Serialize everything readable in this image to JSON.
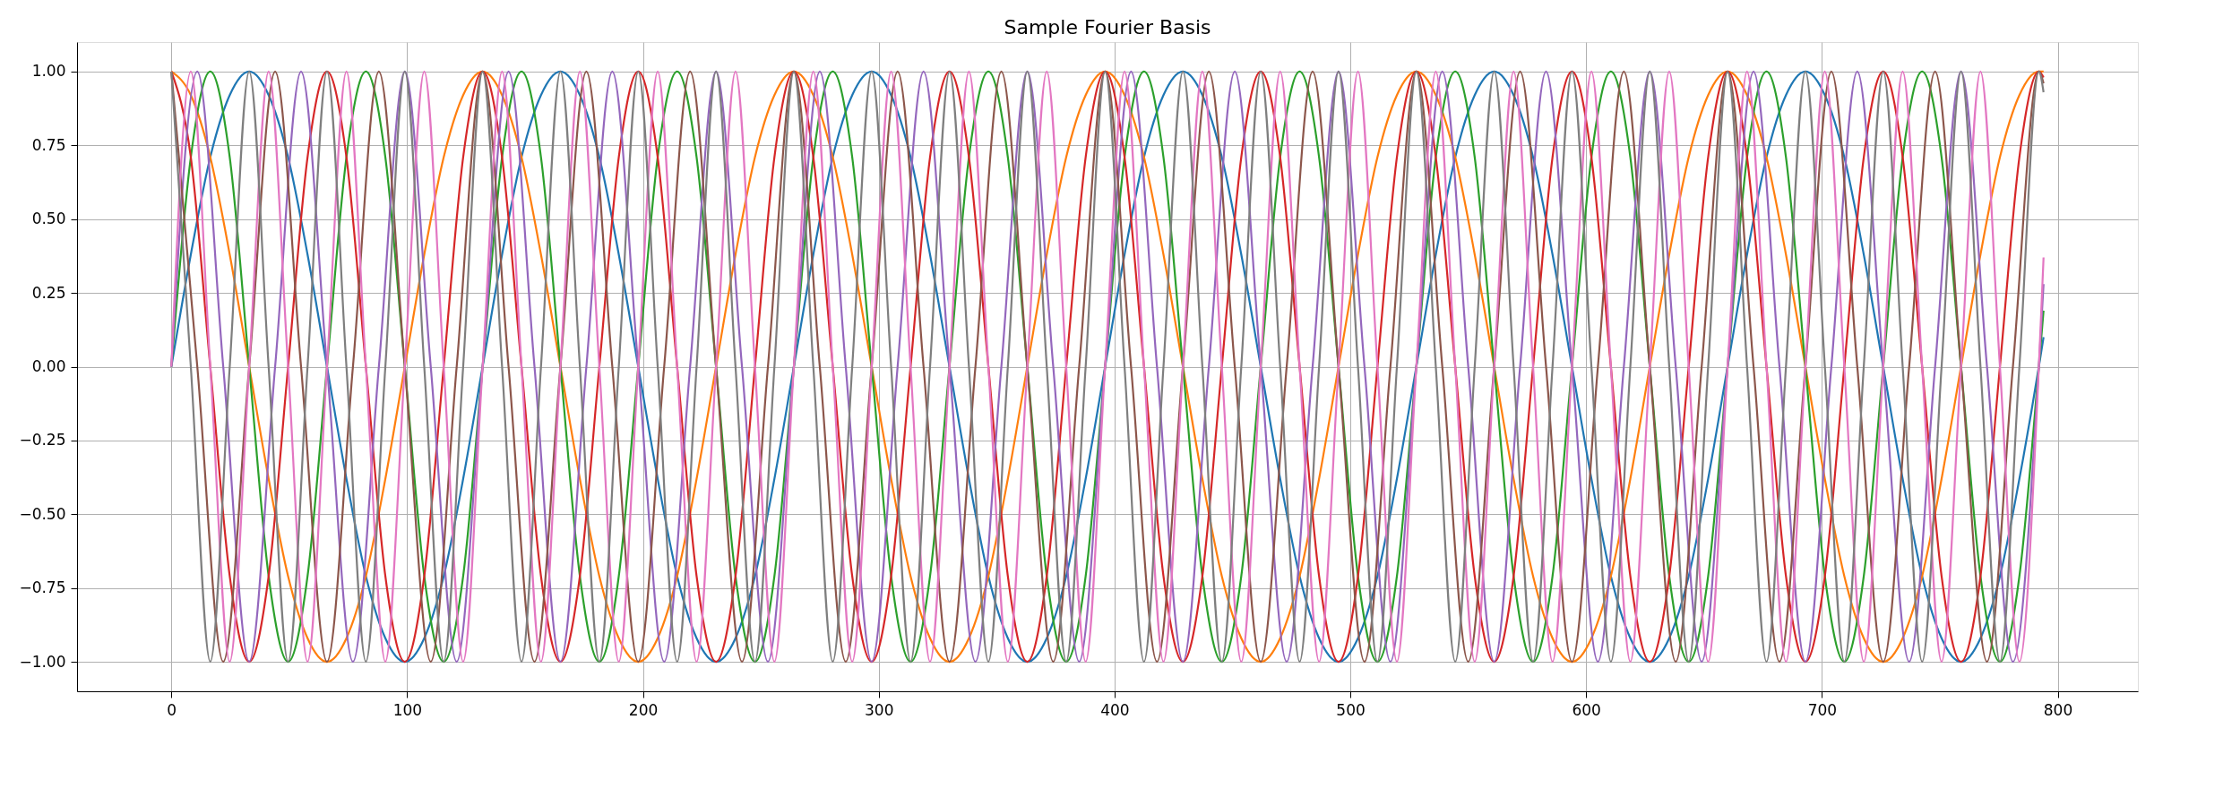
{
  "chart_data": {
    "type": "line",
    "title": "Sample Fourier Basis",
    "x": [
      0,
      8.25,
      16.5,
      24.75,
      33,
      41.25,
      49.5,
      57.75,
      66,
      74.25,
      82.5,
      90.75,
      99,
      107.25,
      115.5,
      123.75,
      132,
      140.25,
      148.5,
      156.75,
      165,
      173.25,
      181.5,
      189.75,
      198,
      206.25,
      214.5,
      222.75,
      231,
      239.25,
      247.5,
      255.75,
      264,
      272.25,
      280.5,
      288.75,
      297,
      305.25,
      313.5,
      321.75,
      330,
      338.25,
      346.5,
      354.75,
      363,
      371.25,
      379.5,
      387.75,
      396,
      404.25,
      412.5,
      420.75,
      429,
      437.25,
      445.5,
      453.75,
      462,
      470.25,
      478.5,
      486.75,
      495,
      503.25,
      511.5,
      519.75,
      528,
      536.25,
      544.5,
      552.75,
      561,
      569.25,
      577.5,
      585.75,
      594,
      602.25,
      610.5,
      618.75,
      627,
      635.25,
      643.5,
      651.75,
      660,
      668.25,
      676.5,
      684.75,
      693,
      701.25,
      709.5,
      717.75,
      726,
      734.25,
      742.5,
      750.75,
      759,
      767.25,
      775.5,
      783.75,
      792,
      794
    ],
    "series": [
      {
        "color": "#1f77b4",
        "values": [
          0,
          0.38,
          0.71,
          0.92,
          1,
          0.92,
          0.71,
          0.38,
          0,
          -0.38,
          -0.71,
          -0.92,
          -1,
          -0.92,
          -0.71,
          -0.38,
          0,
          0.38,
          0.71,
          0.92,
          1,
          0.92,
          0.71,
          0.38,
          0,
          -0.38,
          -0.71,
          -0.92,
          -1,
          -0.92,
          -0.71,
          -0.38,
          0,
          0.38,
          0.71,
          0.92,
          1,
          0.92,
          0.71,
          0.38,
          0,
          -0.38,
          -0.71,
          -0.92,
          -1,
          -0.92,
          -0.71,
          -0.38,
          0,
          0.38,
          0.71,
          0.92,
          1,
          0.92,
          0.71,
          0.38,
          0,
          -0.38,
          -0.71,
          -0.92,
          -1,
          -0.92,
          -0.71,
          -0.38,
          0,
          0.38,
          0.71,
          0.92,
          1,
          0.92,
          0.71,
          0.38,
          0,
          -0.38,
          -0.71,
          -0.92,
          -1,
          -0.92,
          -0.71,
          -0.38,
          0,
          0.38,
          0.71,
          0.92,
          1,
          0.92,
          0.71,
          0.38,
          0,
          -0.38,
          -0.71,
          -0.92,
          -1,
          -0.92,
          -0.71,
          -0.38,
          0,
          0.1
        ]
      },
      {
        "color": "#ff7f0e",
        "values": [
          1,
          0.92,
          0.71,
          0.38,
          0,
          -0.38,
          -0.71,
          -0.92,
          -1,
          -0.92,
          -0.71,
          -0.38,
          0,
          0.38,
          0.71,
          0.92,
          1,
          0.92,
          0.71,
          0.38,
          0,
          -0.38,
          -0.71,
          -0.92,
          -1,
          -0.92,
          -0.71,
          -0.38,
          0,
          0.38,
          0.71,
          0.92,
          1,
          0.92,
          0.71,
          0.38,
          0,
          -0.38,
          -0.71,
          -0.92,
          -1,
          -0.92,
          -0.71,
          -0.38,
          0,
          0.38,
          0.71,
          0.92,
          1,
          0.92,
          0.71,
          0.38,
          0,
          -0.38,
          -0.71,
          -0.92,
          -1,
          -0.92,
          -0.71,
          -0.38,
          0,
          0.38,
          0.71,
          0.92,
          1,
          0.92,
          0.71,
          0.38,
          0,
          -0.38,
          -0.71,
          -0.92,
          -1,
          -0.92,
          -0.71,
          -0.38,
          0,
          0.38,
          0.71,
          0.92,
          1,
          0.92,
          0.71,
          0.38,
          0,
          -0.38,
          -0.71,
          -0.92,
          -1,
          -0.92,
          -0.71,
          -0.38,
          0,
          0.38,
          0.71,
          0.92,
          1,
          1
        ]
      },
      {
        "color": "#2ca02c",
        "values": [
          0,
          0.71,
          1,
          0.71,
          0,
          -0.71,
          -1,
          -0.71,
          0,
          0.71,
          1,
          0.71,
          0,
          -0.71,
          -1,
          -0.71,
          0,
          0.71,
          1,
          0.71,
          0,
          -0.71,
          -1,
          -0.71,
          0,
          0.71,
          1,
          0.71,
          0,
          -0.71,
          -1,
          -0.71,
          0,
          0.71,
          1,
          0.71,
          0,
          -0.71,
          -1,
          -0.71,
          0,
          0.71,
          1,
          0.71,
          0,
          -0.71,
          -1,
          -0.71,
          0,
          0.71,
          1,
          0.71,
          0,
          -0.71,
          -1,
          -0.71,
          0,
          0.71,
          1,
          0.71,
          0,
          -0.71,
          -1,
          -0.71,
          0,
          0.71,
          1,
          0.71,
          0,
          -0.71,
          -1,
          -0.71,
          0,
          0.71,
          1,
          0.71,
          0,
          -0.71,
          -1,
          -0.71,
          0,
          0.71,
          1,
          0.71,
          0,
          -0.71,
          -1,
          -0.71,
          0,
          0.71,
          1,
          0.71,
          0,
          -0.71,
          -1,
          -0.71,
          0,
          0.19
        ]
      },
      {
        "color": "#d62728",
        "values": [
          1,
          0.71,
          0,
          -0.71,
          -1,
          -0.71,
          0,
          0.71,
          1,
          0.71,
          0,
          -0.71,
          -1,
          -0.71,
          0,
          0.71,
          1,
          0.71,
          0,
          -0.71,
          -1,
          -0.71,
          0,
          0.71,
          1,
          0.71,
          0,
          -0.71,
          -1,
          -0.71,
          0,
          0.71,
          1,
          0.71,
          0,
          -0.71,
          -1,
          -0.71,
          0,
          0.71,
          1,
          0.71,
          0,
          -0.71,
          -1,
          -0.71,
          0,
          0.71,
          1,
          0.71,
          0,
          -0.71,
          -1,
          -0.71,
          0,
          0.71,
          1,
          0.71,
          0,
          -0.71,
          -1,
          -0.71,
          0,
          0.71,
          1,
          0.71,
          0,
          -0.71,
          -1,
          -0.71,
          0,
          0.71,
          1,
          0.71,
          0,
          -0.71,
          -1,
          -0.71,
          0,
          0.71,
          1,
          0.71,
          0,
          -0.71,
          -1,
          -0.71,
          0,
          0.71,
          1,
          0.71,
          0,
          -0.71,
          -1,
          -0.71,
          0,
          0.71,
          1,
          0.98
        ]
      },
      {
        "color": "#9467bd",
        "x": [
          0,
          11,
          22,
          33,
          44,
          55,
          66,
          77,
          88,
          99,
          110,
          121,
          132,
          143,
          154,
          165,
          176,
          187,
          198,
          209,
          220,
          231,
          242,
          253,
          264,
          275,
          286,
          297,
          308,
          319,
          330,
          341,
          352,
          363,
          374,
          385,
          396,
          407,
          418,
          429,
          440,
          451,
          462,
          473,
          484,
          495,
          506,
          517,
          528,
          539,
          550,
          561,
          572,
          583,
          594,
          605,
          616,
          627,
          638,
          649,
          660,
          671,
          682,
          693,
          704,
          715,
          726,
          737,
          748,
          759,
          770,
          781,
          792,
          794
        ],
        "values": [
          0,
          1,
          0,
          -1,
          0,
          1,
          0,
          -1,
          0,
          1,
          0,
          -1,
          0,
          1,
          0,
          -1,
          0,
          1,
          0,
          -1,
          0,
          1,
          0,
          -1,
          0,
          1,
          0,
          -1,
          0,
          1,
          0,
          -1,
          0,
          1,
          0,
          -1,
          0,
          1,
          0,
          -1,
          0,
          1,
          0,
          -1,
          0,
          1,
          0,
          -1,
          0,
          1,
          0,
          -1,
          0,
          1,
          0,
          -1,
          0,
          1,
          0,
          -1,
          0,
          1,
          0,
          -1,
          0,
          1,
          0,
          -1,
          0,
          1,
          0,
          -1,
          0,
          0.28
        ]
      },
      {
        "color": "#8c564b",
        "x": [
          0,
          11,
          22,
          33,
          44,
          55,
          66,
          77,
          88,
          99,
          110,
          121,
          132,
          143,
          154,
          165,
          176,
          187,
          198,
          209,
          220,
          231,
          242,
          253,
          264,
          275,
          286,
          297,
          308,
          319,
          330,
          341,
          352,
          363,
          374,
          385,
          396,
          407,
          418,
          429,
          440,
          451,
          462,
          473,
          484,
          495,
          506,
          517,
          528,
          539,
          550,
          561,
          572,
          583,
          594,
          605,
          616,
          627,
          638,
          649,
          660,
          671,
          682,
          693,
          704,
          715,
          726,
          737,
          748,
          759,
          770,
          781,
          792,
          794
        ],
        "values": [
          1,
          0,
          -1,
          0,
          1,
          0,
          -1,
          0,
          1,
          0,
          -1,
          0,
          1,
          0,
          -1,
          0,
          1,
          0,
          -1,
          0,
          1,
          0,
          -1,
          0,
          1,
          0,
          -1,
          0,
          1,
          0,
          -1,
          0,
          1,
          0,
          -1,
          0,
          1,
          0,
          -1,
          0,
          1,
          0,
          -1,
          0,
          1,
          0,
          -1,
          0,
          1,
          0,
          -1,
          0,
          1,
          0,
          -1,
          0,
          1,
          0,
          -1,
          0,
          1,
          0,
          -1,
          0,
          1,
          0,
          -1,
          0,
          1,
          0,
          -1,
          0,
          1,
          0.96
        ]
      },
      {
        "color": "#e377c2",
        "values": [
          0,
          1,
          0,
          -1,
          0,
          1,
          0,
          -1,
          0,
          1,
          0,
          -1,
          0,
          1,
          0,
          -1,
          0,
          1,
          0,
          -1,
          0,
          1,
          0,
          -1,
          0,
          1,
          0,
          -1,
          0,
          1,
          0,
          -1,
          0,
          1,
          0,
          -1,
          0,
          1,
          0,
          -1,
          0,
          1,
          0,
          -1,
          0,
          1,
          0,
          -1,
          0,
          1,
          0,
          -1,
          0,
          1,
          0,
          -1,
          0,
          1,
          0,
          -1,
          0,
          1,
          0,
          -1,
          0,
          1,
          0,
          -1,
          0,
          1,
          0,
          -1,
          0,
          1,
          0,
          -1,
          0,
          1,
          0,
          -1,
          0,
          1,
          0,
          -1,
          0,
          1,
          0,
          -1,
          0,
          1,
          0,
          -1,
          0,
          1,
          0,
          -1,
          0,
          0.37
        ]
      },
      {
        "color": "#7f7f7f",
        "values": [
          1,
          0,
          -1,
          0,
          1,
          0,
          -1,
          0,
          1,
          0,
          -1,
          0,
          1,
          0,
          -1,
          0,
          1,
          0,
          -1,
          0,
          1,
          0,
          -1,
          0,
          1,
          0,
          -1,
          0,
          1,
          0,
          -1,
          0,
          1,
          0,
          -1,
          0,
          1,
          0,
          -1,
          0,
          1,
          0,
          -1,
          0,
          1,
          0,
          -1,
          0,
          1,
          0,
          -1,
          0,
          1,
          0,
          -1,
          0,
          1,
          0,
          -1,
          0,
          1,
          0,
          -1,
          0,
          1,
          0,
          -1,
          0,
          1,
          0,
          -1,
          0,
          1,
          0,
          -1,
          0,
          1,
          0,
          -1,
          0,
          1,
          0,
          -1,
          0,
          1,
          0,
          -1,
          0,
          1,
          0,
          -1,
          0,
          1,
          0,
          -1,
          0,
          1,
          0.93
        ]
      }
    ],
    "xlim": [
      -40,
      834
    ],
    "xticks": [
      0,
      100,
      200,
      300,
      400,
      500,
      600,
      700,
      800
    ],
    "ylim": [
      -1.1,
      1.1
    ],
    "yticks": [
      {
        "value": -1,
        "label": "−1.00"
      },
      {
        "value": -0.75,
        "label": "−0.75"
      },
      {
        "value": -0.5,
        "label": "−0.50"
      },
      {
        "value": -0.25,
        "label": "−0.25"
      },
      {
        "value": 0,
        "label": "0.00"
      },
      {
        "value": 0.25,
        "label": "0.25"
      },
      {
        "value": 0.5,
        "label": "0.50"
      },
      {
        "value": 0.75,
        "label": "0.75"
      },
      {
        "value": 1,
        "label": "1.00"
      }
    ],
    "grid": true,
    "legend": false
  }
}
